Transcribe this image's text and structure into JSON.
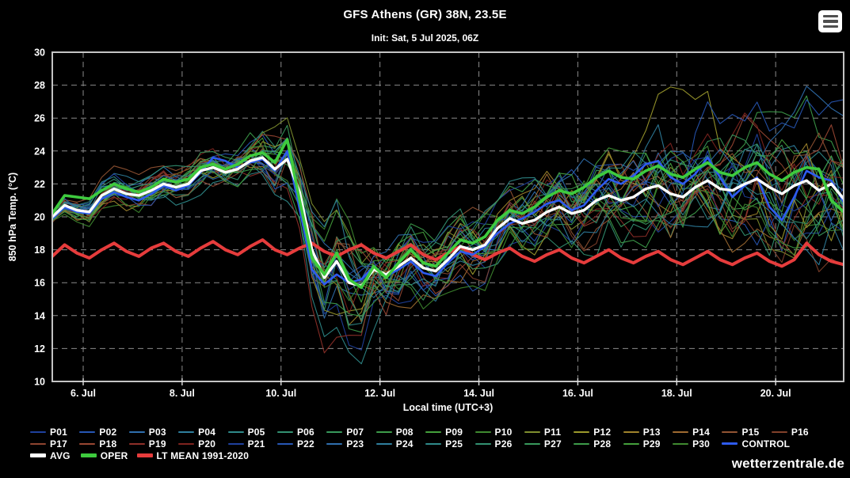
{
  "header": {
    "title": "GFS Athens (GR) 38N, 23.5E",
    "subtitle": "Init: Sat, 5 Jul 2025, 06Z"
  },
  "watermark": "wetterzentrale.de",
  "legend": {
    "rows": [
      [
        "P01",
        "P02",
        "P03",
        "P04",
        "P05",
        "P06",
        "P07",
        "P08",
        "P09",
        "P10",
        "P11",
        "P12",
        "P13",
        "P14",
        "P15",
        "P16"
      ],
      [
        "P17",
        "P18",
        "P19",
        "P20",
        "P21",
        "P22",
        "P23",
        "P24",
        "P25",
        "P26",
        "P27",
        "P28",
        "P29",
        "P30",
        "CONTROL"
      ],
      [
        "AVG",
        "OPER",
        "LT MEAN 1991-2020"
      ]
    ]
  },
  "chart_data": {
    "type": "line",
    "title": "GFS Athens (GR) 38N, 23.5E",
    "subtitle": "Init: Sat, 5 Jul 2025, 06Z",
    "xlabel": "Local time (UTC+3)",
    "ylabel": "850 hPa Temp. (°C)",
    "ylim": [
      10,
      30
    ],
    "y_ticks": [
      10,
      12,
      14,
      16,
      18,
      20,
      22,
      24,
      26,
      28,
      30
    ],
    "x_total_hours": 384,
    "x_step_hours": 6,
    "x_start": "5 Jul 2025 09:00 local",
    "x_ticks": [
      {
        "hour": 15,
        "label": "6. Jul"
      },
      {
        "hour": 63,
        "label": "8. Jul"
      },
      {
        "hour": 111,
        "label": "10. Jul"
      },
      {
        "hour": 159,
        "label": "12. Jul"
      },
      {
        "hour": 207,
        "label": "14. Jul"
      },
      {
        "hour": 255,
        "label": "16. Jul"
      },
      {
        "hour": 303,
        "label": "18. Jul"
      },
      {
        "hour": 351,
        "label": "20. Jul"
      }
    ],
    "grid": true,
    "legend_position": "bottom",
    "colors": {
      "background": "#000000",
      "plot_border": "#c4c4c4",
      "grid": "#8a8a8a",
      "text": "#ffffff",
      "avg": "#ffffff",
      "oper": "#3ecb3e",
      "control": "#2e5bef",
      "lt_mean": "#e63c3c"
    },
    "series": [
      {
        "name": "AVG",
        "color": "#ffffff",
        "width": 3.4,
        "values": [
          20.0,
          20.7,
          20.4,
          20.3,
          21.3,
          21.7,
          21.4,
          21.3,
          21.6,
          22.0,
          21.8,
          22.0,
          22.8,
          23.0,
          22.7,
          22.9,
          23.4,
          23.6,
          22.9,
          23.5,
          21.5,
          18.0,
          16.3,
          17.3,
          16.0,
          15.8,
          16.8,
          16.5,
          17.0,
          17.5,
          16.9,
          16.7,
          17.4,
          18.2,
          18.0,
          18.3,
          19.3,
          19.9,
          19.6,
          19.8,
          20.3,
          20.6,
          20.2,
          20.4,
          21.0,
          21.3,
          21.0,
          21.2,
          21.7,
          21.9,
          21.4,
          21.2,
          21.8,
          22.2,
          21.7,
          21.6,
          22.0,
          22.3,
          21.8,
          21.4,
          21.9,
          22.2,
          21.6,
          22.0,
          21.1
        ]
      },
      {
        "name": "OPER",
        "color": "#3ecb3e",
        "width": 3.6,
        "values": [
          20.2,
          21.3,
          21.2,
          21.1,
          21.6,
          22.0,
          21.7,
          21.5,
          21.8,
          22.3,
          22.1,
          22.3,
          23.0,
          23.2,
          22.9,
          23.2,
          23.7,
          23.9,
          23.3,
          24.7,
          21.0,
          17.5,
          16.5,
          17.8,
          16.2,
          15.7,
          17.0,
          16.3,
          17.2,
          18.0,
          17.2,
          17.0,
          17.8,
          18.6,
          18.4,
          18.8,
          19.8,
          20.4,
          20.2,
          20.6,
          21.2,
          21.6,
          21.4,
          21.8,
          22.4,
          22.8,
          22.4,
          22.3,
          22.8,
          23.1,
          22.6,
          22.4,
          22.9,
          23.3,
          22.7,
          22.5,
          23.0,
          23.3,
          22.6,
          22.2,
          22.7,
          23.0,
          22.9,
          21.0,
          20.3
        ]
      },
      {
        "name": "CONTROL",
        "color": "#2e5bef",
        "width": 2.6,
        "values": [
          19.9,
          20.6,
          20.3,
          20.2,
          21.1,
          21.5,
          21.2,
          21.0,
          21.4,
          21.9,
          21.6,
          21.9,
          22.7,
          23.6,
          23.4,
          23.0,
          23.3,
          23.5,
          22.8,
          24.0,
          20.5,
          16.8,
          15.9,
          16.5,
          16.0,
          16.2,
          17.0,
          16.4,
          16.8,
          17.3,
          16.6,
          16.4,
          17.2,
          17.9,
          17.7,
          18.2,
          19.0,
          19.6,
          19.9,
          20.3,
          20.8,
          21.0,
          20.4,
          20.7,
          21.6,
          22.3,
          22.0,
          22.5,
          23.2,
          23.4,
          22.4,
          22.0,
          22.6,
          23.6,
          22.4,
          21.2,
          21.9,
          22.4,
          20.6,
          19.8,
          21.2,
          22.8,
          22.4,
          22.2,
          20.9
        ]
      },
      {
        "name": "LT MEAN 1991-2020",
        "color": "#e63c3c",
        "width": 4,
        "values": [
          17.6,
          18.3,
          17.8,
          17.5,
          18.0,
          18.4,
          17.9,
          17.6,
          18.1,
          18.4,
          17.9,
          17.6,
          18.1,
          18.5,
          18.0,
          17.7,
          18.2,
          18.6,
          18.0,
          17.7,
          18.1,
          18.4,
          17.9,
          17.6,
          18.0,
          18.3,
          17.8,
          17.5,
          17.9,
          18.3,
          17.7,
          17.4,
          17.8,
          18.2,
          17.7,
          17.4,
          17.8,
          18.1,
          17.6,
          17.3,
          17.7,
          18.0,
          17.5,
          17.2,
          17.6,
          18.0,
          17.5,
          17.2,
          17.6,
          17.9,
          17.4,
          17.1,
          17.5,
          17.9,
          17.4,
          17.1,
          17.5,
          17.8,
          17.3,
          17.0,
          17.4,
          18.4,
          17.7,
          17.3,
          17.1
        ]
      }
    ],
    "ensemble": {
      "member_labels": [
        "P01",
        "P02",
        "P03",
        "P04",
        "P05",
        "P06",
        "P07",
        "P08",
        "P09",
        "P10",
        "P11",
        "P12",
        "P13",
        "P14",
        "P15",
        "P16",
        "P17",
        "P18",
        "P19",
        "P20",
        "P21",
        "P22",
        "P23",
        "P24",
        "P25",
        "P26",
        "P27",
        "P28",
        "P29",
        "P30"
      ],
      "palette": [
        "#1f419e",
        "#2757b5",
        "#2f6fae",
        "#2f7f9e",
        "#2f8a8a",
        "#339272",
        "#38995c",
        "#3d9c4a",
        "#44a03c",
        "#3f8a30",
        "#7f8f2f",
        "#9c9a2c",
        "#a0842c",
        "#9f6b31",
        "#935433",
        "#82412b",
        "#8f4531",
        "#9a4733",
        "#8f3029",
        "#7f241f"
      ],
      "line_width": 1.1,
      "opacity": 0.92,
      "seed": 42,
      "spread_by_day": [
        0.35,
        0.5,
        0.6,
        0.7,
        0.9,
        1.7,
        2.0,
        1.5,
        1.3,
        1.25,
        1.4,
        1.6,
        1.8,
        2.0,
        2.2,
        2.4,
        2.5
      ],
      "outliers": [
        {
          "member_index": 21,
          "center_index": 57,
          "amplitude": 6.2,
          "sigma": 5
        },
        {
          "member_index": 11,
          "center_index": 50,
          "amplitude": 4.6,
          "sigma": 3.5
        }
      ]
    }
  }
}
